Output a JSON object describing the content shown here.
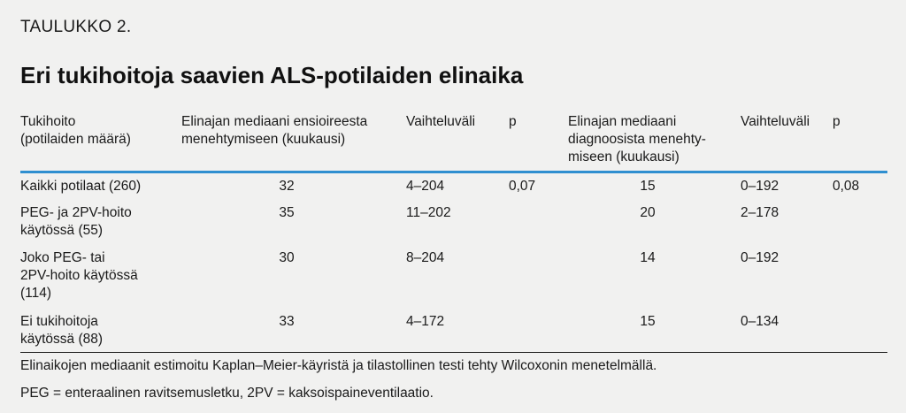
{
  "table_label": "TAULUKKO 2.",
  "title": "Eri tukihoitoja saavien ALS-potilaiden elinaika",
  "headers": {
    "treatment": [
      "Tukihoito",
      "(potilaiden määrä)"
    ],
    "median_onset": [
      "Elinajan mediaani ensioireesta",
      "menehtymiseen (kuukausi)"
    ],
    "range_onset": [
      "Vaihteluväli"
    ],
    "p_onset": [
      "p"
    ],
    "median_diag": [
      "Elinajan mediaani",
      "diagnoosista menehty-",
      "miseen (kuukausi)"
    ],
    "range_diag": [
      "Vaihteluväli"
    ],
    "p_diag": [
      "p"
    ]
  },
  "rows": [
    {
      "treatment": [
        "Kaikki potilaat (260)"
      ],
      "median_onset": "32",
      "range_onset": "4–204",
      "p_onset": "0,07",
      "median_diag": "15",
      "range_diag": "0–192",
      "p_diag": "0,08"
    },
    {
      "treatment": [
        "PEG- ja 2PV-hoito",
        "käytössä (55)"
      ],
      "median_onset": "35",
      "range_onset": "11–202",
      "p_onset": "",
      "median_diag": "20",
      "range_diag": "2–178",
      "p_diag": ""
    },
    {
      "treatment": [
        "Joko PEG- tai",
        "2PV-hoito käytössä",
        "(114)"
      ],
      "median_onset": "30",
      "range_onset": "8–204",
      "p_onset": "",
      "median_diag": "14",
      "range_diag": "0–192",
      "p_diag": ""
    },
    {
      "treatment": [
        "Ei tukihoitoja",
        "käytössä (88)"
      ],
      "median_onset": "33",
      "range_onset": "4–172",
      "p_onset": "",
      "median_diag": "15",
      "range_diag": "0–134",
      "p_diag": ""
    }
  ],
  "footnotes": [
    "Elinaikojen mediaanit estimoitu Kaplan–Meier-käyristä ja tilastollinen testi tehty Wilcoxonin menetelmällä.",
    "PEG = enteraalinen ravitsemusletku, 2PV = kaksoispaineventilaatio."
  ],
  "colors": {
    "header_rule": "#2f8fd0",
    "background": "#f1f1f0"
  }
}
